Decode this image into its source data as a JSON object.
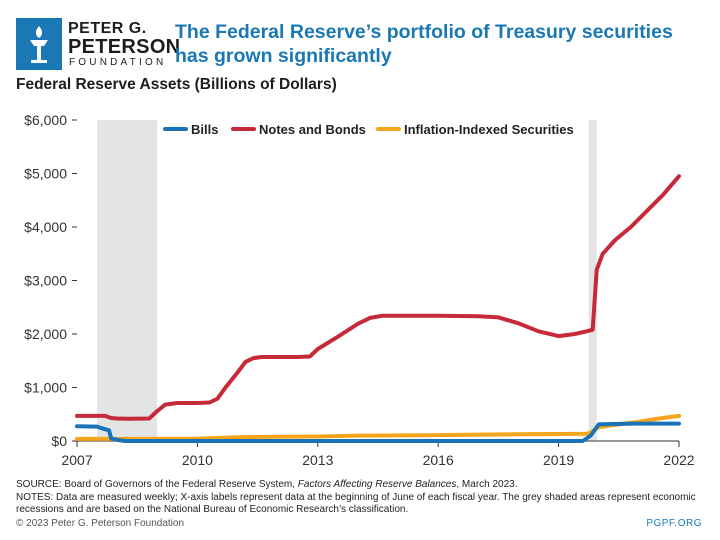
{
  "brand": {
    "line1": "PETER G.",
    "line2": "PETERSON",
    "line3": "FOUNDATION",
    "color": "#1a78b4",
    "icon": "torch-icon"
  },
  "headline": "The Federal Reserve’s portfolio of Treasury securities has grown significantly",
  "chart_data": {
    "type": "line",
    "title": "Federal Reserve Assets (Billions of Dollars)",
    "xlim": [
      2007,
      2022
    ],
    "ylim": [
      0,
      6000
    ],
    "x_ticks": [
      2007,
      2010,
      2013,
      2016,
      2019,
      2022
    ],
    "x_tick_labels": [
      "2007",
      "2010",
      "2013",
      "2016",
      "2019",
      "2022"
    ],
    "y_ticks": [
      0,
      1000,
      2000,
      3000,
      4000,
      5000,
      6000
    ],
    "y_tick_labels": [
      "$0",
      "$1,000",
      "$2,000",
      "$3,000",
      "$4,000",
      "$5,000",
      "$6,000"
    ],
    "grid": false,
    "legend_position": "top",
    "recessions": [
      [
        2007.5,
        2009.0
      ],
      [
        2019.75,
        2019.95
      ]
    ],
    "series": [
      {
        "name": "Bills",
        "color": "#1a73b8",
        "points": [
          [
            2007,
            275
          ],
          [
            2007.5,
            270
          ],
          [
            2007.65,
            230
          ],
          [
            2007.8,
            200
          ],
          [
            2007.85,
            50
          ],
          [
            2008.0,
            20
          ],
          [
            2008.2,
            0
          ],
          [
            2019.3,
            0
          ],
          [
            2019.6,
            0
          ],
          [
            2019.8,
            100
          ],
          [
            2020.0,
            310
          ],
          [
            2020.5,
            320
          ],
          [
            2021.0,
            325
          ],
          [
            2022.0,
            325
          ]
        ]
      },
      {
        "name": "Notes and Bonds",
        "color": "#c62a3a",
        "points": [
          [
            2007,
            470
          ],
          [
            2007.7,
            470
          ],
          [
            2007.85,
            430
          ],
          [
            2008.0,
            420
          ],
          [
            2008.3,
            415
          ],
          [
            2008.8,
            420
          ],
          [
            2009.0,
            560
          ],
          [
            2009.2,
            680
          ],
          [
            2009.5,
            710
          ],
          [
            2010.0,
            710
          ],
          [
            2010.3,
            720
          ],
          [
            2010.5,
            790
          ],
          [
            2010.7,
            1000
          ],
          [
            2011.0,
            1280
          ],
          [
            2011.2,
            1480
          ],
          [
            2011.4,
            1550
          ],
          [
            2011.6,
            1570
          ],
          [
            2012.0,
            1570
          ],
          [
            2012.5,
            1570
          ],
          [
            2012.8,
            1580
          ],
          [
            2013.0,
            1720
          ],
          [
            2013.5,
            1950
          ],
          [
            2014.0,
            2190
          ],
          [
            2014.3,
            2300
          ],
          [
            2014.6,
            2340
          ],
          [
            2015.0,
            2340
          ],
          [
            2016.0,
            2340
          ],
          [
            2017.0,
            2330
          ],
          [
            2017.5,
            2310
          ],
          [
            2018.0,
            2200
          ],
          [
            2018.5,
            2050
          ],
          [
            2019.0,
            1960
          ],
          [
            2019.4,
            2000
          ],
          [
            2019.7,
            2050
          ],
          [
            2019.85,
            2080
          ],
          [
            2019.95,
            3200
          ],
          [
            2020.1,
            3500
          ],
          [
            2020.4,
            3750
          ],
          [
            2020.8,
            4000
          ],
          [
            2021.2,
            4300
          ],
          [
            2021.6,
            4600
          ],
          [
            2022.0,
            4950
          ]
        ]
      },
      {
        "name": "Inflation-Indexed Securities",
        "color": "#f6a51c",
        "points": [
          [
            2007,
            40
          ],
          [
            2008.5,
            40
          ],
          [
            2010.0,
            45
          ],
          [
            2011.0,
            70
          ],
          [
            2012.0,
            80
          ],
          [
            2013.0,
            85
          ],
          [
            2014.0,
            100
          ],
          [
            2015.0,
            105
          ],
          [
            2016.0,
            110
          ],
          [
            2017.0,
            120
          ],
          [
            2018.0,
            125
          ],
          [
            2019.0,
            130
          ],
          [
            2019.7,
            135
          ],
          [
            2019.8,
            160
          ],
          [
            2020.0,
            260
          ],
          [
            2020.5,
            310
          ],
          [
            2021.0,
            360
          ],
          [
            2021.5,
            420
          ],
          [
            2022.0,
            470
          ]
        ]
      }
    ]
  },
  "notes": {
    "source_prefix": "SOURCE: Board of Governors of the Federal Reserve System, ",
    "source_title": "Factors Affecting Reserve Balances",
    "source_suffix": ", March 2023.",
    "notes_text": "NOTES: Data are measured weekly; X-axis labels represent data at the beginning of June of each fiscal year. The grey shaded areas represent economic recessions and are based on the National Bureau of Economic Research’s classification."
  },
  "footer": {
    "copyright": "© 2023 Peter G. Peterson Foundation",
    "site": "PGPF.ORG"
  }
}
